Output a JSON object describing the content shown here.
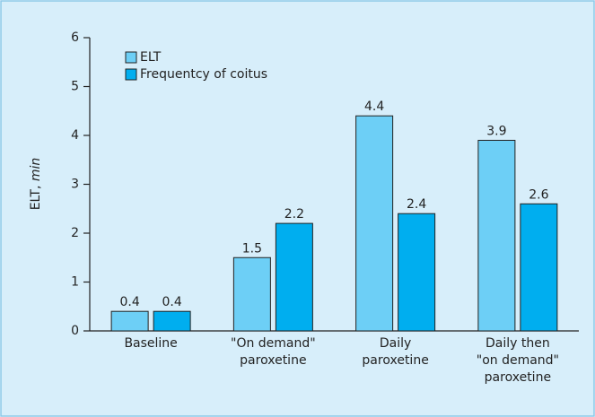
{
  "chart_data": {
    "type": "bar",
    "ylabel": {
      "text": "ELT, ",
      "unit": "min"
    },
    "categories": [
      [
        "Baseline"
      ],
      [
        "\"On demand\"",
        "paroxetine"
      ],
      [
        "Daily",
        "paroxetine"
      ],
      [
        "Daily then",
        "\"on demand\"",
        "paroxetine"
      ]
    ],
    "series": [
      {
        "name": "ELT",
        "color": "#6dcff6",
        "values": [
          0.4,
          1.5,
          4.4,
          3.9
        ]
      },
      {
        "name": "Frequentcy of coitus",
        "color": "#00aeef",
        "values": [
          0.4,
          2.2,
          2.4,
          2.6
        ]
      }
    ],
    "ylim": [
      0,
      6
    ],
    "yticks": [
      0,
      1,
      2,
      3,
      4,
      5,
      6
    ],
    "legend": "upper left"
  }
}
